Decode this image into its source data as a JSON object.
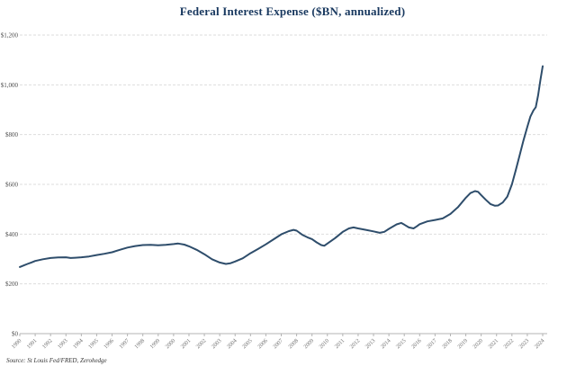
{
  "title": "Federal Interest Expense ($BN, annualized)",
  "source": "Source: St Louis Fed/FRED, Zerohedge",
  "colors": {
    "line": "#2e4d6b",
    "title": "#17375e",
    "grid": "#dddddd",
    "axis": "#b3b3b3",
    "x_label": "#6e6e6e",
    "y_label": "#4d4d4d",
    "source": "#333333"
  },
  "chart_data": {
    "type": "line",
    "title": "Federal Interest Expense ($BN, annualized)",
    "xlabel": "",
    "ylabel": "",
    "legend": false,
    "grid": "horizontal",
    "xlim": [
      1990,
      2024
    ],
    "ylim": [
      0,
      1200
    ],
    "y_tick_values": [
      0,
      200,
      400,
      600,
      800,
      1000,
      1200
    ],
    "y_tick_labels": [
      "$0",
      "$200",
      "$400",
      "$600",
      "$800",
      "$1,000",
      "$1,200"
    ],
    "x_tick_labels": [
      "1990",
      "1991",
      "1992",
      "1993",
      "1994",
      "1995",
      "1996",
      "1997",
      "1998",
      "1999",
      "2000",
      "2001",
      "2002",
      "2003",
      "2004",
      "2005",
      "2006",
      "2007",
      "2008",
      "2009",
      "2010",
      "2011",
      "2012",
      "2013",
      "2014",
      "2015",
      "2016",
      "2017",
      "2018",
      "2019",
      "2020",
      "2021",
      "2022",
      "2023",
      "2024"
    ],
    "series": [
      {
        "name": "Federal Interest Expense ($BN, annualized)",
        "points": [
          [
            1990.0,
            268
          ],
          [
            1990.25,
            274
          ],
          [
            1990.5,
            280
          ],
          [
            1990.75,
            286
          ],
          [
            1991.0,
            292
          ],
          [
            1991.5,
            299
          ],
          [
            1992.0,
            304
          ],
          [
            1992.5,
            306
          ],
          [
            1993.0,
            307
          ],
          [
            1993.3,
            304
          ],
          [
            1993.6,
            305
          ],
          [
            1994.0,
            307
          ],
          [
            1994.5,
            310
          ],
          [
            1995.0,
            316
          ],
          [
            1995.5,
            321
          ],
          [
            1996.0,
            327
          ],
          [
            1996.5,
            337
          ],
          [
            1997.0,
            346
          ],
          [
            1997.5,
            352
          ],
          [
            1998.0,
            356
          ],
          [
            1998.5,
            357
          ],
          [
            1999.0,
            355
          ],
          [
            1999.5,
            357
          ],
          [
            2000.0,
            360
          ],
          [
            2000.3,
            362
          ],
          [
            2000.7,
            358
          ],
          [
            2001.0,
            351
          ],
          [
            2001.5,
            337
          ],
          [
            2002.0,
            319
          ],
          [
            2002.5,
            299
          ],
          [
            2003.0,
            286
          ],
          [
            2003.4,
            280
          ],
          [
            2003.7,
            283
          ],
          [
            2004.0,
            290
          ],
          [
            2004.5,
            303
          ],
          [
            2005.0,
            323
          ],
          [
            2005.5,
            341
          ],
          [
            2006.0,
            359
          ],
          [
            2006.5,
            379
          ],
          [
            2007.0,
            399
          ],
          [
            2007.5,
            412
          ],
          [
            2007.8,
            417
          ],
          [
            2008.0,
            414
          ],
          [
            2008.4,
            396
          ],
          [
            2008.7,
            387
          ],
          [
            2009.0,
            380
          ],
          [
            2009.3,
            367
          ],
          [
            2009.6,
            356
          ],
          [
            2009.8,
            353
          ],
          [
            2010.0,
            362
          ],
          [
            2010.5,
            384
          ],
          [
            2011.0,
            409
          ],
          [
            2011.4,
            423
          ],
          [
            2011.7,
            427
          ],
          [
            2012.0,
            423
          ],
          [
            2012.5,
            417
          ],
          [
            2013.0,
            411
          ],
          [
            2013.4,
            405
          ],
          [
            2013.7,
            409
          ],
          [
            2014.0,
            421
          ],
          [
            2014.5,
            439
          ],
          [
            2014.8,
            445
          ],
          [
            2015.0,
            438
          ],
          [
            2015.3,
            427
          ],
          [
            2015.6,
            423
          ],
          [
            2015.8,
            431
          ],
          [
            2016.0,
            440
          ],
          [
            2016.5,
            451
          ],
          [
            2017.0,
            457
          ],
          [
            2017.5,
            463
          ],
          [
            2018.0,
            481
          ],
          [
            2018.5,
            509
          ],
          [
            2019.0,
            546
          ],
          [
            2019.3,
            565
          ],
          [
            2019.6,
            573
          ],
          [
            2019.8,
            570
          ],
          [
            2020.0,
            557
          ],
          [
            2020.3,
            538
          ],
          [
            2020.6,
            521
          ],
          [
            2020.9,
            514
          ],
          [
            2021.1,
            515
          ],
          [
            2021.4,
            527
          ],
          [
            2021.7,
            551
          ],
          [
            2022.0,
            600
          ],
          [
            2022.25,
            657
          ],
          [
            2022.5,
            717
          ],
          [
            2022.75,
            776
          ],
          [
            2023.0,
            831
          ],
          [
            2023.2,
            872
          ],
          [
            2023.4,
            897
          ],
          [
            2023.55,
            910
          ],
          [
            2023.7,
            958
          ],
          [
            2023.85,
            1018
          ],
          [
            2024.0,
            1075
          ]
        ]
      }
    ]
  }
}
